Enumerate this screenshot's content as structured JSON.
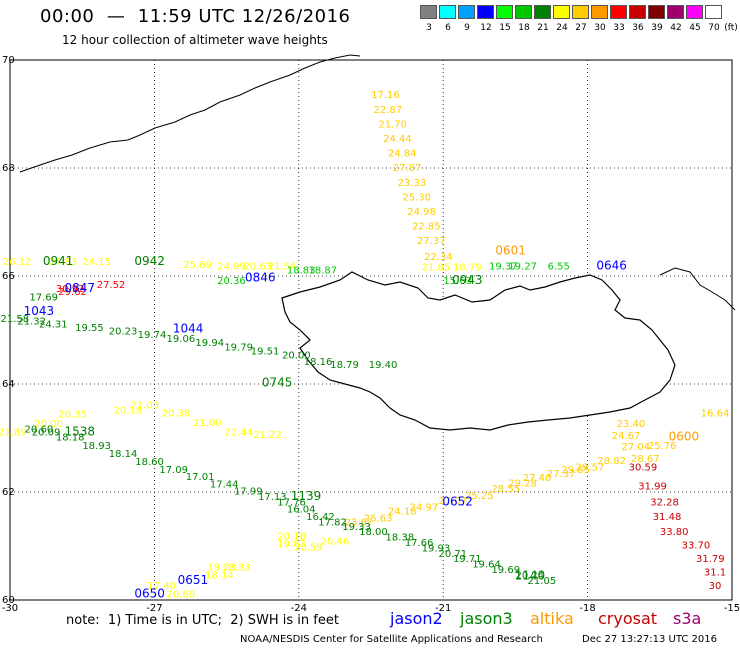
{
  "header": {
    "title": "00:00  —  11:59 UTC 12/26/2016",
    "subtitle": "12 hour collection of altimeter wave heights"
  },
  "legend": {
    "unit": "(ft)",
    "bins": [
      {
        "color": "#808080",
        "label": "3"
      },
      {
        "color": "#00ffff",
        "label": "6"
      },
      {
        "color": "#00a0ff",
        "label": "9"
      },
      {
        "color": "#0000ff",
        "label": "12"
      },
      {
        "color": "#00ff00",
        "label": "15"
      },
      {
        "color": "#00c800",
        "label": "18"
      },
      {
        "color": "#008000",
        "label": "21"
      },
      {
        "color": "#ffff00",
        "label": "24"
      },
      {
        "color": "#ffcc00",
        "label": "27"
      },
      {
        "color": "#ff9900",
        "label": "30"
      },
      {
        "color": "#ff0000",
        "label": "33"
      },
      {
        "color": "#c80000",
        "label": "36"
      },
      {
        "color": "#800000",
        "label": "39"
      },
      {
        "color": "#a0006e",
        "label": "42"
      },
      {
        "color": "#ff00ff",
        "label": "45"
      },
      {
        "color": "#ffffff",
        "label": "70"
      }
    ]
  },
  "axes": {
    "lon": {
      "range": [
        -30,
        -15
      ],
      "ticks": [
        {
          "v": -30,
          "t": "-30"
        },
        {
          "v": -27,
          "t": "-27"
        },
        {
          "v": -24,
          "t": "-24"
        },
        {
          "v": -21,
          "t": "-21"
        },
        {
          "v": -18,
          "t": "-18"
        },
        {
          "v": -15,
          "t": "-15"
        }
      ]
    },
    "lat": {
      "range": [
        60,
        70
      ],
      "ticks": [
        {
          "v": 70,
          "t": "70"
        },
        {
          "v": 68,
          "t": "68"
        },
        {
          "v": 66,
          "t": "66"
        },
        {
          "v": 64,
          "t": "64"
        },
        {
          "v": 62,
          "t": "62"
        },
        {
          "v": 60,
          "t": "60"
        }
      ]
    }
  },
  "tracks": [
    {
      "name": "altika",
      "color": "#ffcc00",
      "points": [
        [
          "17.16",
          -22.2,
          69.3
        ],
        [
          "22.87",
          -22.15,
          69.02
        ],
        [
          "21.70",
          -22.05,
          68.75
        ],
        [
          "24.44",
          -21.95,
          68.48
        ],
        [
          "24.84",
          -21.85,
          68.21
        ],
        [
          "27.87",
          -21.75,
          67.94
        ],
        [
          "23.33",
          -21.65,
          67.67
        ],
        [
          "25.30",
          -21.55,
          67.4
        ],
        [
          "24.98",
          -21.45,
          67.13
        ],
        [
          "22.85",
          -21.35,
          66.86
        ],
        [
          "27.37",
          -21.25,
          66.59
        ],
        [
          "22.34",
          -21.1,
          66.3
        ]
      ]
    },
    {
      "name": "altika-sw",
      "color": "#ffcc00",
      "points": [
        [
          "23.40",
          -17.1,
          63.2
        ],
        [
          "24.67",
          -17.2,
          62.98
        ],
        [
          "27.04",
          -17.0,
          62.78
        ],
        [
          "25.76",
          -16.45,
          62.8
        ],
        [
          "28.67",
          -16.8,
          62.56
        ],
        [
          "28.82",
          -17.5,
          62.52
        ],
        [
          "29.57",
          -17.95,
          62.4
        ],
        [
          "29.85",
          -18.25,
          62.35
        ],
        [
          "27.37",
          -18.55,
          62.28
        ],
        [
          "27.40",
          -19.05,
          62.2
        ],
        [
          "29.28",
          -19.35,
          62.1
        ],
        [
          "28.55",
          -19.7,
          62.0
        ],
        [
          "25.25",
          -20.25,
          61.87
        ],
        [
          "27.07",
          -20.8,
          61.78
        ],
        [
          "24.97",
          -21.4,
          61.66
        ],
        [
          "24.18",
          -21.85,
          61.58
        ],
        [
          "25.63",
          -22.35,
          61.45
        ],
        [
          "23.67",
          -22.75,
          61.38
        ],
        [
          "16.64",
          -15.2,
          63.4
        ]
      ]
    },
    {
      "name": "jason3-n",
      "color": "#ffff00",
      "points": [
        [
          "26.12",
          -29.85,
          66.2
        ],
        [
          "24.83",
          -28.9,
          66.2
        ],
        [
          "24.15",
          -28.2,
          66.2
        ],
        [
          "25.69",
          -26.1,
          66.15
        ],
        [
          "24.99",
          -25.4,
          66.12
        ],
        [
          "20.63",
          -24.85,
          66.12
        ],
        [
          "21.54",
          -24.35,
          66.12
        ],
        [
          "21.85",
          -21.15,
          66.1
        ],
        [
          "18.79",
          -20.5,
          66.1
        ]
      ]
    },
    {
      "name": "jason3-n-green",
      "color": "#00c800",
      "points": [
        [
          "20.36",
          -25.4,
          65.85
        ],
        [
          "18.83",
          -23.95,
          66.05
        ],
        [
          "18.87",
          -23.5,
          66.05
        ],
        [
          "15.63",
          -20.7,
          65.85
        ],
        [
          "19.37",
          -19.75,
          66.12
        ],
        [
          "19.27",
          -19.35,
          66.12
        ],
        [
          "6.55",
          -18.6,
          66.12
        ]
      ]
    },
    {
      "name": "jason2-n-red",
      "color": "#ff0000",
      "points": [
        [
          "29.62",
          -28.7,
          65.65
        ],
        [
          "27.52",
          -27.9,
          65.78
        ]
      ]
    },
    {
      "name": "jason3-mid",
      "color": "#008000",
      "points": [
        [
          "17.69",
          -29.3,
          65.55
        ],
        [
          "21.58",
          -29.9,
          65.15
        ],
        [
          "21.32",
          -29.55,
          65.1
        ],
        [
          "24.31",
          -29.1,
          65.05
        ],
        [
          "19.55",
          -28.35,
          64.98
        ],
        [
          "20.23",
          -27.65,
          64.92
        ],
        [
          "19.74",
          -27.05,
          64.85
        ],
        [
          "19.06",
          -26.45,
          64.78
        ],
        [
          "19.94",
          -25.85,
          64.7
        ],
        [
          "19.79",
          -25.25,
          64.62
        ],
        [
          "19.51",
          -24.7,
          64.55
        ],
        [
          "20.00",
          -24.05,
          64.47
        ],
        [
          "18.16",
          -23.6,
          64.35
        ],
        [
          "18.79",
          -23.05,
          64.3
        ],
        [
          "19.40",
          -22.25,
          64.3
        ]
      ]
    },
    {
      "name": "jason3-yellow-sw",
      "color": "#ffff00",
      "points": [
        [
          "21.03",
          -27.2,
          63.55
        ],
        [
          "20.38",
          -26.55,
          63.4
        ],
        [
          "21.00",
          -25.9,
          63.22
        ],
        [
          "21.44",
          -25.25,
          63.05
        ],
        [
          "21.22",
          -24.65,
          63.0
        ],
        [
          "20.18",
          -27.55,
          63.45
        ],
        [
          "20.35",
          -28.7,
          63.38
        ],
        [
          "20.00",
          -29.2,
          63.2
        ],
        [
          "21.89",
          -29.95,
          63.05
        ]
      ]
    },
    {
      "name": "jason3-sw-green",
      "color": "#008000",
      "points": [
        [
          "20.09",
          -29.25,
          63.05
        ],
        [
          "20.60",
          -29.4,
          63.1
        ],
        [
          "18.18",
          -28.75,
          62.95
        ],
        [
          "18.93",
          -28.2,
          62.8
        ],
        [
          "18.14",
          -27.65,
          62.65
        ],
        [
          "18.60",
          -27.1,
          62.5
        ],
        [
          "17.09",
          -26.6,
          62.35
        ],
        [
          "17.01",
          -26.05,
          62.22
        ],
        [
          "17.44",
          -25.55,
          62.08
        ],
        [
          "17.99",
          -25.05,
          61.95
        ],
        [
          "17.13",
          -24.55,
          61.85
        ],
        [
          "17.76",
          -24.15,
          61.75
        ],
        [
          "16.04",
          -23.95,
          61.62
        ],
        [
          "16.42",
          -23.55,
          61.48
        ],
        [
          "17.82",
          -23.3,
          61.38
        ],
        [
          "19.33",
          -22.8,
          61.3
        ],
        [
          "18.00",
          -22.45,
          61.2
        ],
        [
          "18.38",
          -21.9,
          61.1
        ],
        [
          "17.66",
          -21.5,
          61.0
        ],
        [
          "19.93",
          -21.15,
          60.9
        ],
        [
          "20.71",
          -20.8,
          60.8
        ],
        [
          "19.71",
          -20.5,
          60.7
        ],
        [
          "19.64",
          -20.1,
          60.6
        ],
        [
          "19.69",
          -19.7,
          60.5
        ],
        [
          "20.24",
          -19.2,
          60.4
        ],
        [
          "21.05",
          -18.95,
          60.3
        ]
      ]
    },
    {
      "name": "jason3-lower-yellow",
      "color": "#ffff00",
      "points": [
        [
          "20.46",
          -23.25,
          61.03
        ],
        [
          "20.59",
          -23.8,
          60.92
        ],
        [
          "20.18",
          -24.15,
          61.12
        ],
        [
          "19.83",
          -24.15,
          60.98
        ],
        [
          "18.33",
          -25.3,
          60.55
        ],
        [
          "18.14",
          -25.65,
          60.4
        ],
        [
          "17.40",
          -26.85,
          60.2
        ],
        [
          "20.60",
          -26.45,
          60.05
        ],
        [
          "19.23",
          -25.6,
          60.55
        ]
      ]
    },
    {
      "name": "cryosat",
      "color": "#c80000",
      "points": [
        [
          "30.59",
          -16.85,
          62.4
        ],
        [
          "31.99",
          -16.65,
          62.05
        ],
        [
          "32.28",
          -16.4,
          61.75
        ],
        [
          "31.48",
          -16.35,
          61.48
        ],
        [
          "33.80",
          -16.2,
          61.2
        ],
        [
          "33.70",
          -15.75,
          60.95
        ],
        [
          "31.79",
          -15.45,
          60.7
        ],
        [
          "31.1",
          -15.2,
          60.45
        ],
        [
          "30",
          -15.05,
          60.2
        ]
      ]
    },
    {
      "name": "cryosat-upper-red",
      "color": "#ff0000",
      "points": [
        [
          "30.92",
          -28.75,
          65.7
        ]
      ]
    }
  ],
  "time_labels": [
    {
      "t": "0941",
      "color": "#008000",
      "lon": -29.0,
      "lat": 66.2
    },
    {
      "t": "0942",
      "color": "#008000",
      "lon": -27.1,
      "lat": 66.2
    },
    {
      "t": "0846",
      "color": "#0000ff",
      "lon": -24.8,
      "lat": 65.9
    },
    {
      "t": "0847",
      "color": "#0000ff",
      "lon": -28.55,
      "lat": 65.7
    },
    {
      "t": "1043",
      "color": "#0000ff",
      "lon": -29.4,
      "lat": 65.28
    },
    {
      "t": "1044",
      "color": "#0000ff",
      "lon": -26.3,
      "lat": 64.95
    },
    {
      "t": "0745",
      "color": "#008000",
      "lon": -24.45,
      "lat": 63.95
    },
    {
      "t": "0943",
      "color": "#008000",
      "lon": -20.5,
      "lat": 65.85
    },
    {
      "t": "0601",
      "color": "#ff9900",
      "lon": -19.6,
      "lat": 66.4
    },
    {
      "t": "0646",
      "color": "#0000ff",
      "lon": -17.5,
      "lat": 66.12
    },
    {
      "t": "1538",
      "color": "#008000",
      "lon": -28.55,
      "lat": 63.05
    },
    {
      "t": "1139",
      "color": "#008000",
      "lon": -23.85,
      "lat": 61.85
    },
    {
      "t": "0652",
      "color": "#0000ff",
      "lon": -20.7,
      "lat": 61.75
    },
    {
      "t": "0600",
      "color": "#ff9900",
      "lon": -16.0,
      "lat": 62.95
    },
    {
      "t": "1140",
      "color": "#008000",
      "lon": -19.2,
      "lat": 60.38
    },
    {
      "t": "0651",
      "color": "#0000ff",
      "lon": -26.2,
      "lat": 60.3
    },
    {
      "t": "0650",
      "color": "#0000ff",
      "lon": -27.1,
      "lat": 60.05
    }
  ],
  "footer": {
    "note": "note:  1) Time is in UTC;  2) SWH is in feet",
    "satellites": [
      {
        "name": "jason2",
        "color": "#0000ff"
      },
      {
        "name": "jason3",
        "color": "#008000"
      },
      {
        "name": "altika",
        "color": "#ff9900"
      },
      {
        "name": "cryosat",
        "color": "#c80000"
      },
      {
        "name": "s3a",
        "color": "#a0006e"
      }
    ],
    "credit": "NOAA/NESDIS Center for Satellite Applications and Research",
    "timestamp": "Dec 27 13:27:13 UTC 2016"
  }
}
